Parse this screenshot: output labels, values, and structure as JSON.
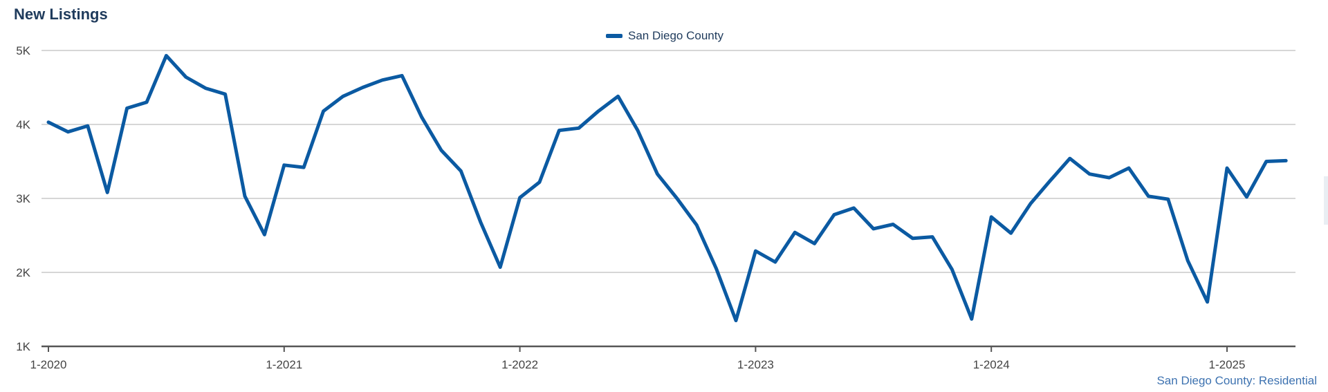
{
  "title": "New Listings",
  "footer_note": "San Diego County: Residential",
  "chart_data": {
    "type": "line",
    "title": "New Listings",
    "xlabel": "",
    "ylabel": "",
    "ylim": [
      1000,
      5000
    ],
    "grid": true,
    "legend_position": "top-center",
    "y_ticks": [
      1000,
      2000,
      3000,
      4000,
      5000
    ],
    "y_tick_labels": [
      "1K",
      "2K",
      "3K",
      "4K",
      "5K"
    ],
    "x_tick_labels": [
      "1-2020",
      "1-2021",
      "1-2022",
      "1-2023",
      "1-2024",
      "1-2025"
    ],
    "x": [
      "2020-01",
      "2020-02",
      "2020-03",
      "2020-04",
      "2020-05",
      "2020-06",
      "2020-07",
      "2020-08",
      "2020-09",
      "2020-10",
      "2020-11",
      "2020-12",
      "2021-01",
      "2021-02",
      "2021-03",
      "2021-04",
      "2021-05",
      "2021-06",
      "2021-07",
      "2021-08",
      "2021-09",
      "2021-10",
      "2021-11",
      "2021-12",
      "2022-01",
      "2022-02",
      "2022-03",
      "2022-04",
      "2022-05",
      "2022-06",
      "2022-07",
      "2022-08",
      "2022-09",
      "2022-10",
      "2022-11",
      "2022-12",
      "2023-01",
      "2023-02",
      "2023-03",
      "2023-04",
      "2023-05",
      "2023-06",
      "2023-07",
      "2023-08",
      "2023-09",
      "2023-10",
      "2023-11",
      "2023-12",
      "2024-01",
      "2024-02",
      "2024-03",
      "2024-04",
      "2024-05",
      "2024-06",
      "2024-07",
      "2024-08",
      "2024-09",
      "2024-10",
      "2024-11",
      "2024-12",
      "2025-01",
      "2025-02",
      "2025-03",
      "2025-04"
    ],
    "series": [
      {
        "name": "San Diego County",
        "color": "#0b5aa2",
        "values": [
          4030,
          3900,
          3980,
          3080,
          4220,
          4300,
          4930,
          4640,
          4490,
          4410,
          3030,
          2510,
          3450,
          3420,
          4180,
          4380,
          4500,
          4600,
          4660,
          4100,
          3650,
          3370,
          2680,
          2070,
          3010,
          3220,
          3920,
          3950,
          4180,
          4380,
          3920,
          3330,
          3000,
          2640,
          2050,
          1350,
          2290,
          2140,
          2540,
          2390,
          2780,
          2870,
          2590,
          2650,
          2460,
          2480,
          2040,
          1370,
          2750,
          2530,
          2930,
          3240,
          3540,
          3330,
          3280,
          3410,
          3030,
          2990,
          2160,
          1600,
          3410,
          3020,
          3500,
          3510
        ]
      }
    ]
  }
}
